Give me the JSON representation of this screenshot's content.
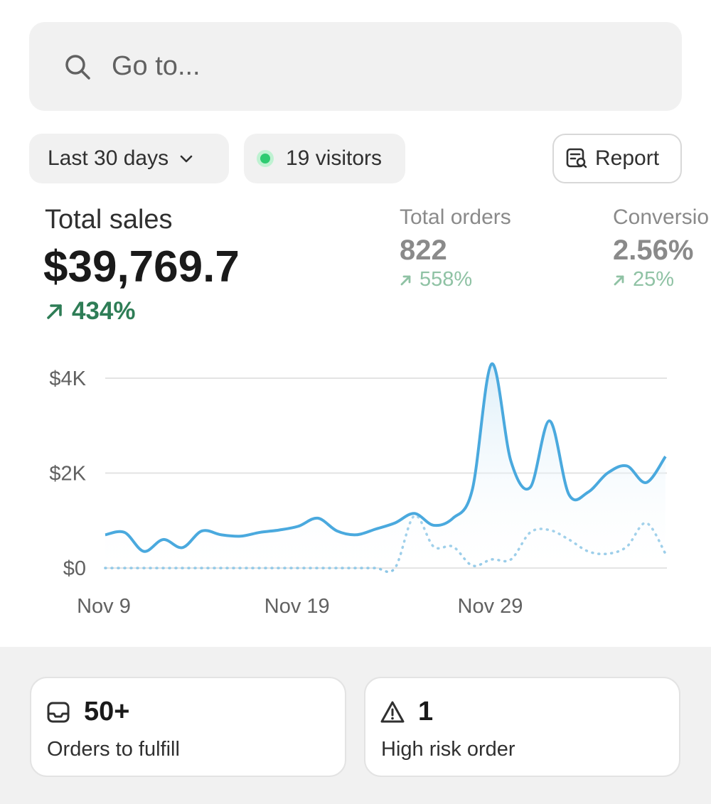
{
  "search": {
    "placeholder": "Go to..."
  },
  "filters": {
    "date_range": "Last 30 days",
    "visitors": "19 visitors",
    "report": "Report"
  },
  "metrics": {
    "total_sales": {
      "label": "Total sales",
      "value": "$39,769.7",
      "change": "434%"
    },
    "total_orders": {
      "label": "Total orders",
      "value": "822",
      "change": "558%"
    },
    "conversion": {
      "label": "Conversio",
      "value": "2.56%",
      "change": "25%"
    }
  },
  "colors": {
    "accent": "#4aa9de",
    "positive": "#2e7d56",
    "live_dot": "#2ecb71"
  },
  "chart_data": {
    "type": "line",
    "y_ticks": [
      "$4K",
      "$2K",
      "$0"
    ],
    "ylim": [
      0,
      4000
    ],
    "x_ticks": [
      "Nov 9",
      "Nov 19",
      "Nov 29"
    ],
    "grid": true,
    "series": [
      {
        "style": "solid",
        "values": [
          700,
          750,
          350,
          600,
          430,
          780,
          700,
          670,
          750,
          800,
          880,
          1050,
          780,
          700,
          820,
          950,
          1150,
          900,
          1050,
          1650,
          4300,
          2250,
          1700,
          3100,
          1550,
          1600,
          2000,
          2150,
          1800,
          2350
        ]
      },
      {
        "style": "dotted",
        "values": [
          0,
          0,
          0,
          0,
          0,
          0,
          0,
          0,
          0,
          0,
          0,
          0,
          0,
          0,
          0,
          0,
          1100,
          450,
          450,
          50,
          180,
          180,
          750,
          800,
          600,
          350,
          300,
          450,
          950,
          300
        ]
      }
    ]
  },
  "cards": [
    {
      "icon": "inbox-icon",
      "value": "50+",
      "label": "Orders to fulfill"
    },
    {
      "icon": "warning-icon",
      "value": "1",
      "label": "High risk order"
    }
  ]
}
